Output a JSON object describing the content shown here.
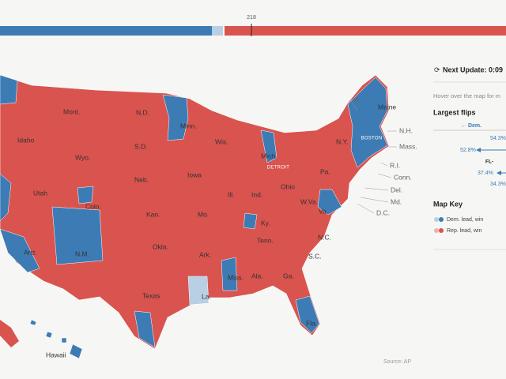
{
  "progress_bar": {
    "majority_label": "218"
  },
  "map": {
    "state_labels": [
      "Mont.",
      "N.D.",
      "Minn.",
      "Idaho",
      "S.D.",
      "Wyo.",
      "Wis.",
      "Mich.",
      "Iowa",
      "Neb.",
      "Utah",
      "Colo.",
      "Kan.",
      "Ill.",
      "Ind.",
      "Ohio",
      "Pa.",
      "N.Y.",
      "Vt.",
      "Maine",
      "N.H.",
      "Mass.",
      "R.I.",
      "Conn.",
      "Del.",
      "Md.",
      "D.C.",
      "W.Va.",
      "Va.",
      "Ky.",
      "Mo.",
      "Tenn.",
      "N.C.",
      "Okla.",
      "Ark.",
      "Ariz.",
      "N.M.",
      "Texas",
      "La.",
      "Miss.",
      "Ala.",
      "Ga.",
      "S.C.",
      "Fla.",
      "Hawaii"
    ],
    "city_labels": [
      "DETROIT",
      "BOSTON"
    ],
    "source": "Source: AP"
  },
  "sidebar": {
    "next_update": "Next Update: 0:09",
    "hint": "Hover over the map for m",
    "largest_flips": {
      "title": "Largest flips",
      "dem_header": "← Dem.",
      "rows": [
        "54.3%",
        "52.8%",
        "FL-",
        "37.4%",
        "34.3%"
      ]
    },
    "map_key": {
      "title": "Map Key",
      "items": [
        "Dem. lead, win",
        "Rep. lead, win"
      ]
    }
  }
}
